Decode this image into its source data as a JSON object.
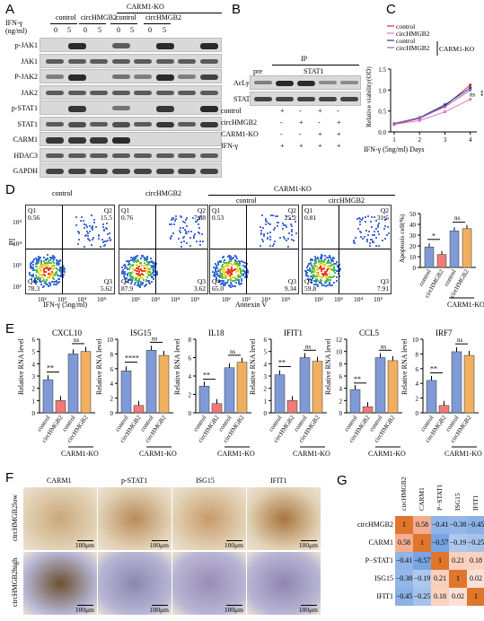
{
  "panelA": {
    "letter": "A",
    "ifn_label": "IFN-γ\n(ng/ml)",
    "groups": [
      "control",
      "circHMGB2",
      "control",
      "circHMGB2"
    ],
    "ko_label": "CARM1-KO",
    "doses": [
      "0",
      "5",
      "0",
      "5",
      "0",
      "5",
      "0",
      "5"
    ],
    "rows": [
      "p-JAK1",
      "JAK1",
      "P-JAK2",
      "JAK2",
      "p-STAT1",
      "STAT1",
      "CARM1",
      "HDAC3",
      "GAPDH"
    ]
  },
  "panelB": {
    "letter": "B",
    "ip_label": "IP",
    "pre": "pre",
    "stat1": "STAT1",
    "rows": [
      "AcLys",
      "STAT1"
    ],
    "cond_labels": [
      "control",
      "circHMGB2",
      "CARM1-KO",
      "IFN-γ"
    ],
    "cond_values": [
      [
        "+",
        "-",
        "+",
        "-"
      ],
      [
        "-",
        "+",
        "-",
        "+"
      ],
      [
        "-",
        "-",
        "+",
        "+"
      ],
      [
        "+",
        "+",
        "+",
        "+"
      ]
    ]
  },
  "panelC": {
    "letter": "C",
    "legend": [
      "control",
      "circHMGB2",
      "control",
      "circHMGB2"
    ],
    "ko_label": "CARM1-KO",
    "ylabel": "Relative viability(OD)",
    "xlabel": "IFN-γ (5ng/ml) Days",
    "sig1": "**",
    "sig2": "ns",
    "colors": [
      "#d62728",
      "#e377c2",
      "#1f3a93",
      "#9467bd"
    ]
  },
  "chart_data": {
    "type": "line",
    "x": [
      1,
      2,
      3,
      4
    ],
    "xlabel": "IFN-γ (5ng/ml) Days",
    "ylabel": "Relative viability(OD)",
    "ylim": [
      0,
      1.5
    ],
    "yticks": [
      "0.0",
      "0.5",
      "1.0",
      "1.5"
    ],
    "xticks": [
      "1",
      "2",
      "3",
      "4"
    ],
    "series": [
      {
        "name": "control",
        "values": [
          0.18,
          0.32,
          0.62,
          1.12
        ]
      },
      {
        "name": "circHMGB2",
        "values": [
          0.18,
          0.27,
          0.48,
          0.78
        ]
      },
      {
        "name": "control",
        "values": [
          0.2,
          0.34,
          0.65,
          1.05
        ]
      },
      {
        "name": "circHMGB2",
        "values": [
          0.19,
          0.33,
          0.6,
          1.0
        ]
      }
    ]
  },
  "panelD": {
    "letter": "D",
    "titles": [
      "control",
      "circHMGB2",
      "control",
      "circHMGB2"
    ],
    "ko_label": "CARM1-KO",
    "ylabel": "PI",
    "xlabel_left": "IFN-γ (5ng/ml)",
    "xlabel_right": "Annexin V",
    "quads": [
      {
        "q1": "Q1",
        "q1v": "0.56",
        "q2": "Q2",
        "q2v": "15.5",
        "q3": "Q3",
        "q3v": "5.62",
        "q4": "Q4",
        "q4v": "78.3"
      },
      {
        "q1": "Q1",
        "q1v": "0.76",
        "q2": "Q2",
        "q2v": "7.68",
        "q3": "Q3",
        "q3v": "3.62",
        "q4": "Q4",
        "q4v": "87.9"
      },
      {
        "q1": "Q1",
        "q1v": "0.53",
        "q2": "Q2",
        "q2v": "25.2",
        "q3": "Q3",
        "q3v": "9.34",
        "q4": "Q4",
        "q4v": "65.0"
      },
      {
        "q1": "Q1",
        "q1v": "0.81",
        "q2": "Q2",
        "q2v": "31.5",
        "q3": "Q3",
        "q3v": "7.91",
        "q4": "Q4",
        "q4v": "59.8"
      }
    ],
    "ticks": [
      "10²",
      "10³",
      "10⁴",
      "10⁵"
    ],
    "ylabel_bar": "Apoptosis cell(%)",
    "bar_yticks": [
      "0",
      "10",
      "20",
      "30",
      "40",
      "50"
    ],
    "bar_values": [
      19,
      12,
      34,
      36
    ],
    "sig": [
      "*",
      "ns"
    ],
    "bar_x": [
      "control",
      "circHMGB2",
      "control",
      "circHMGB2"
    ],
    "bar_ko": "CARM1-KO"
  },
  "panelE": {
    "letter": "E",
    "genes": [
      {
        "name": "CXCL10",
        "yticks": [
          "0",
          "1",
          "2",
          "3",
          "4",
          "5",
          "6"
        ],
        "ymax": 6,
        "values": [
          2.7,
          1.0,
          4.8,
          5.0
        ],
        "sig": [
          "**",
          "ns"
        ]
      },
      {
        "name": "ISG15",
        "yticks": [
          "0",
          "2",
          "4",
          "6",
          "8",
          "10"
        ],
        "ymax": 10,
        "values": [
          5.7,
          1.0,
          8.5,
          7.8
        ],
        "sig": [
          "****",
          "ns"
        ]
      },
      {
        "name": "IL18",
        "yticks": [
          "0",
          "2",
          "4",
          "6",
          "8"
        ],
        "ymax": 8,
        "values": [
          2.9,
          1.0,
          4.9,
          5.5
        ],
        "sig": [
          "**",
          "ns"
        ]
      },
      {
        "name": "IFIT1",
        "yticks": [
          "0",
          "1",
          "2",
          "3",
          "4",
          "5",
          "6"
        ],
        "ymax": 6,
        "values": [
          3.1,
          1.0,
          4.5,
          4.2
        ],
        "sig": [
          "**",
          "ns"
        ]
      },
      {
        "name": "CCL5",
        "yticks": [
          "0",
          "2",
          "4",
          "6",
          "8",
          "10",
          "12"
        ],
        "ymax": 12,
        "values": [
          3.8,
          1.0,
          9.0,
          8.5
        ],
        "sig": [
          "**",
          "ns"
        ]
      },
      {
        "name": "IRF7",
        "yticks": [
          "0",
          "2",
          "4",
          "6",
          "8",
          "10"
        ],
        "ymax": 10,
        "values": [
          4.4,
          1.0,
          8.3,
          7.8
        ],
        "sig": [
          "**",
          "ns"
        ]
      }
    ],
    "ylabel": "Relative RNA level",
    "xlabels": [
      "control",
      "circHMGB2",
      "control",
      "circHMGB2"
    ],
    "ko": "CARM1-KO"
  },
  "panelF": {
    "letter": "F",
    "cols": [
      "CARM1",
      "p-STAT1",
      "ISG15",
      "IFIT1"
    ],
    "row_labels": [
      "circHMGB2low",
      "circHMGB2high"
    ],
    "scale": "100μm"
  },
  "panelG": {
    "letter": "G",
    "labels": [
      "circHMGB2",
      "CARM1",
      "P−STAT1",
      "ISG15",
      "IFIT1"
    ],
    "matrix": [
      [
        "1",
        "0.58",
        "−0.41",
        "−0.38",
        "−0.45"
      ],
      [
        "0.58",
        "1",
        "−0.57",
        "−0.19",
        "−0.25"
      ],
      [
        "−0.41",
        "−0.57",
        "1",
        "0.21",
        "0.18"
      ],
      [
        "−0.38",
        "−0.19",
        "0.21",
        "1",
        "0.02"
      ],
      [
        "−0.45",
        "−0.25",
        "0.18",
        "0.02",
        "1"
      ]
    ],
    "values": [
      [
        1,
        0.58,
        -0.41,
        -0.38,
        -0.45
      ],
      [
        0.58,
        1,
        -0.57,
        -0.19,
        -0.25
      ],
      [
        -0.41,
        -0.57,
        1,
        0.21,
        0.18
      ],
      [
        -0.38,
        -0.19,
        0.21,
        1,
        0.02
      ],
      [
        -0.45,
        -0.25,
        0.18,
        0.02,
        1
      ]
    ]
  }
}
